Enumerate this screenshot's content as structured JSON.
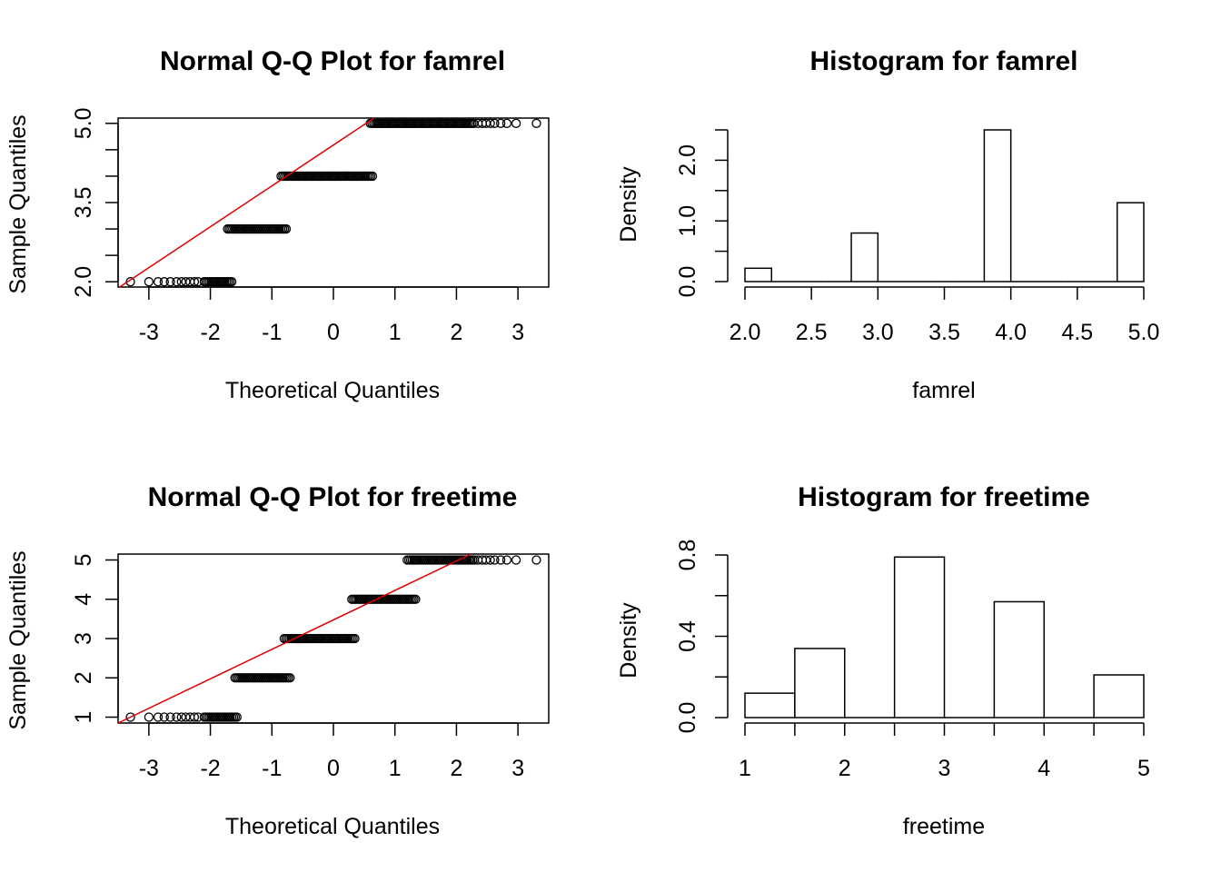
{
  "chart_data": [
    {
      "type": "scatter",
      "title": "Normal Q-Q Plot for  famrel",
      "xlabel": "Theoretical Quantiles",
      "ylabel": "Sample Quantiles",
      "xlim": [
        -3.5,
        3.5
      ],
      "ylim": [
        1.9,
        5.1
      ],
      "xticks": [
        -3,
        -2,
        -1,
        0,
        1,
        2,
        3
      ],
      "xtick_labels": [
        "-3",
        "-2",
        "-1",
        "0",
        "1",
        "2",
        "3"
      ],
      "yticks": [
        2.0,
        2.5,
        3.0,
        3.5,
        4.0,
        4.5,
        5.0
      ],
      "ytick_labels": [
        "2.0",
        "",
        "",
        "3.5",
        "",
        "",
        "5.0"
      ],
      "groups": [
        {
          "y": 2,
          "x_from": -2.1,
          "x_to": -1.65,
          "sparse": [
            -3.3,
            -3.0,
            -2.85,
            -2.75,
            -2.65,
            -2.55,
            -2.47,
            -2.4,
            -2.33,
            -2.26,
            -2.2
          ]
        },
        {
          "y": 3,
          "x_from": -1.72,
          "x_to": -0.75,
          "sparse": []
        },
        {
          "y": 4,
          "x_from": -0.85,
          "x_to": 0.65,
          "sparse": []
        },
        {
          "y": 5,
          "x_from": 0.6,
          "x_to": 2.3,
          "sparse": [
            2.35,
            2.42,
            2.48,
            2.55,
            2.62,
            2.72,
            2.82,
            2.97,
            3.3
          ]
        }
      ],
      "reference_line": {
        "color": "#dd0000",
        "x1": -3.5,
        "y1": 1.88,
        "x2": 3.5,
        "y2": 7.3
      }
    },
    {
      "type": "bar",
      "title": "Histogram for  famrel",
      "xlabel": "famrel",
      "ylabel": "Density",
      "xlim": [
        2.0,
        5.0
      ],
      "ylim": [
        0,
        2.5
      ],
      "xticks": [
        2.0,
        2.5,
        3.0,
        3.5,
        4.0,
        4.5,
        5.0
      ],
      "xtick_labels": [
        "2.0",
        "2.5",
        "3.0",
        "3.5",
        "4.0",
        "4.5",
        "5.0"
      ],
      "yticks": [
        0,
        0.5,
        1.0,
        1.5,
        2.0,
        2.5
      ],
      "ytick_labels": [
        "0.0",
        "",
        "1.0",
        "",
        "2.0",
        ""
      ],
      "bins": [
        [
          2.0,
          2.2
        ],
        [
          2.2,
          2.4
        ],
        [
          2.4,
          2.6
        ],
        [
          2.6,
          2.8
        ],
        [
          2.8,
          3.0
        ],
        [
          3.0,
          3.2
        ],
        [
          3.2,
          3.4
        ],
        [
          3.4,
          3.6
        ],
        [
          3.6,
          3.8
        ],
        [
          3.8,
          4.0
        ],
        [
          4.0,
          4.2
        ],
        [
          4.2,
          4.4
        ],
        [
          4.4,
          4.6
        ],
        [
          4.6,
          4.8
        ],
        [
          4.8,
          5.0
        ]
      ],
      "values": [
        0.22,
        0,
        0,
        0,
        0.8,
        0,
        0,
        0,
        0,
        2.5,
        0,
        0,
        0,
        0,
        1.3
      ]
    },
    {
      "type": "scatter",
      "title": "Normal Q-Q Plot for  freetime",
      "xlabel": "Theoretical Quantiles",
      "ylabel": "Sample Quantiles",
      "xlim": [
        -3.5,
        3.5
      ],
      "ylim": [
        0.85,
        5.15
      ],
      "xticks": [
        -3,
        -2,
        -1,
        0,
        1,
        2,
        3
      ],
      "xtick_labels": [
        "-3",
        "-2",
        "-1",
        "0",
        "1",
        "2",
        "3"
      ],
      "yticks": [
        1,
        2,
        3,
        4,
        5
      ],
      "ytick_labels": [
        "1",
        "2",
        "3",
        "4",
        "5"
      ],
      "groups": [
        {
          "y": 1,
          "x_from": -2.1,
          "x_to": -1.55,
          "sparse": [
            -3.3,
            -3.0,
            -2.85,
            -2.75,
            -2.65,
            -2.55,
            -2.47,
            -2.4,
            -2.33,
            -2.26,
            -2.2
          ]
        },
        {
          "y": 2,
          "x_from": -1.6,
          "x_to": -0.7,
          "sparse": []
        },
        {
          "y": 3,
          "x_from": -0.8,
          "x_to": 0.35,
          "sparse": []
        },
        {
          "y": 4,
          "x_from": 0.3,
          "x_to": 1.35,
          "sparse": []
        },
        {
          "y": 5,
          "x_from": 1.2,
          "x_to": 2.3,
          "sparse": [
            2.35,
            2.42,
            2.48,
            2.55,
            2.62,
            2.72,
            2.82,
            2.97,
            3.3
          ]
        }
      ],
      "reference_line": {
        "color": "#dd0000",
        "x1": -3.5,
        "y1": 0.85,
        "x2": 3.5,
        "y2": 6.1
      }
    },
    {
      "type": "bar",
      "title": "Histogram for  freetime",
      "xlabel": "freetime",
      "ylabel": "Density",
      "xlim": [
        1,
        5
      ],
      "ylim": [
        0,
        0.8
      ],
      "xticks": [
        1,
        1.5,
        2,
        2.5,
        3,
        3.5,
        4,
        4.5,
        5
      ],
      "xtick_labels": [
        "1",
        "",
        "2",
        "",
        "3",
        "",
        "4",
        "",
        "5"
      ],
      "yticks": [
        0,
        0.2,
        0.4,
        0.6,
        0.8
      ],
      "ytick_labels": [
        "0.0",
        "",
        "0.4",
        "",
        "0.8"
      ],
      "bins": [
        [
          1.0,
          1.5
        ],
        [
          1.5,
          2.0
        ],
        [
          2.0,
          2.5
        ],
        [
          2.5,
          3.0
        ],
        [
          3.0,
          3.5
        ],
        [
          3.5,
          4.0
        ],
        [
          4.0,
          4.5
        ],
        [
          4.5,
          5.0
        ]
      ],
      "values": [
        0.12,
        0.34,
        0,
        0.79,
        0,
        0.57,
        0,
        0.21
      ]
    }
  ]
}
